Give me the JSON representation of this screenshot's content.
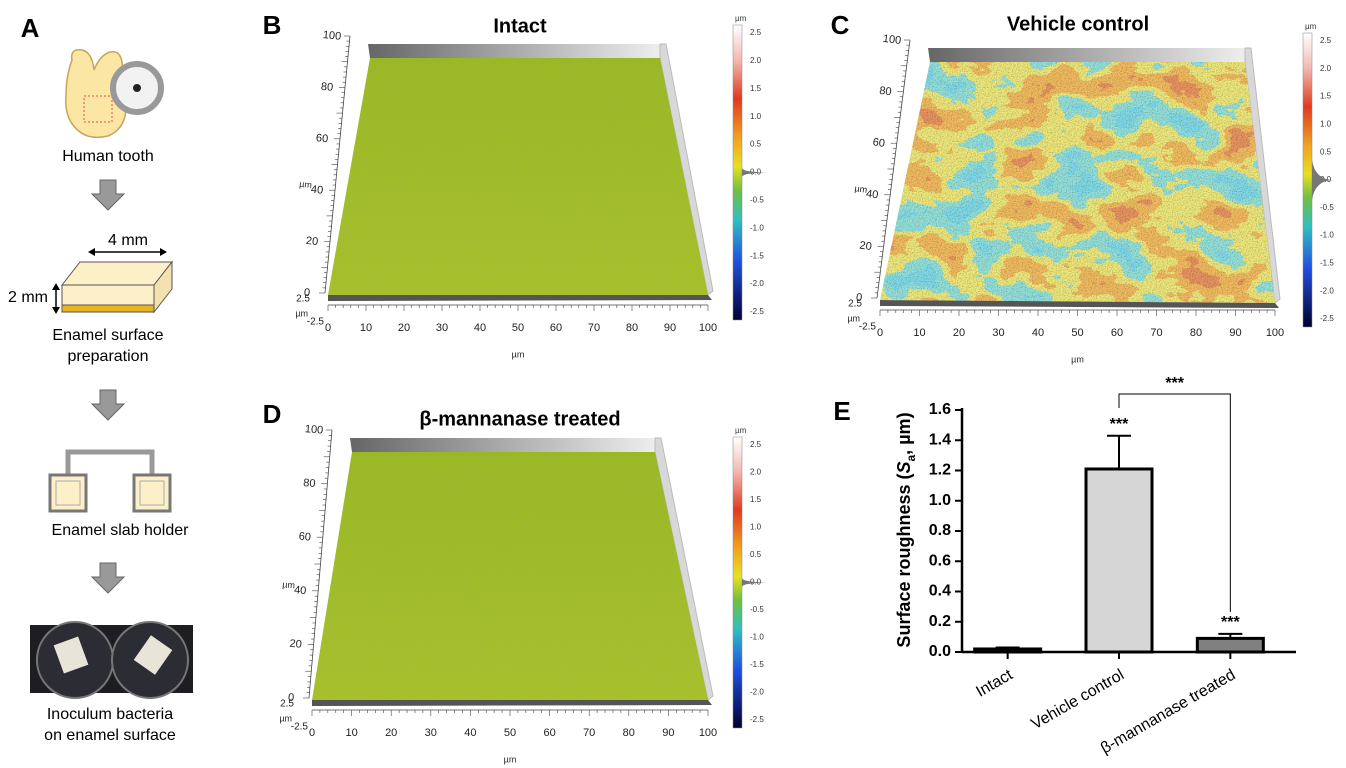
{
  "panel_a": {
    "label": "A",
    "steps": [
      [
        "Human tooth"
      ],
      [
        "Enamel surface",
        "preparation"
      ],
      [
        "Enamel slab holder"
      ],
      [
        "Inoculum bacteria",
        "on enamel surface"
      ]
    ],
    "dimensions": [
      "4 mm",
      "2 mm"
    ]
  },
  "surfaces": [
    {
      "label": "B",
      "title": "Intact"
    },
    {
      "label": "C",
      "title": "Vehicle control"
    },
    {
      "label": "D",
      "title": "β-mannanase treated"
    }
  ],
  "surface_axes": {
    "unit": "µm",
    "xticks": [
      "0",
      "10",
      "20",
      "30",
      "40",
      "50",
      "60",
      "70",
      "80",
      "90",
      "100"
    ],
    "yticks": [
      "0",
      "20",
      "40",
      "60",
      "80",
      "100"
    ],
    "zticks": [
      "2.5",
      "-2.5"
    ],
    "colorbar_ticks": [
      "2.5",
      "2.0",
      "1.5",
      "1.0",
      "0.5",
      "0.0",
      "-0.5",
      "-1.0",
      "-1.5",
      "-2.0",
      "-2.5"
    ]
  },
  "chart_data": {
    "type": "bar",
    "label": "E",
    "ylabel_parts": [
      "Surface roughness (",
      "S",
      "a",
      ", µm)"
    ],
    "categories": [
      "Intact",
      "Vehicle control",
      "β-mannanase treated"
    ],
    "values": [
      0.02,
      1.21,
      0.09
    ],
    "errors": [
      0.01,
      0.22,
      0.03
    ],
    "colors": [
      "#d6d6d6",
      "#d6d6d6",
      "#808080"
    ],
    "edgecolor": "#000000",
    "ylim": [
      0,
      1.6
    ],
    "yticks": [
      {
        "value": 0,
        "label": "0.0"
      },
      {
        "value": 0.2,
        "label": "0.2"
      },
      {
        "value": 0.4,
        "label": "0.4"
      },
      {
        "value": 0.6,
        "label": "0.6"
      },
      {
        "value": 0.8,
        "label": "0.8"
      },
      {
        "value": 1.0,
        "label": "1.0"
      },
      {
        "value": 1.2,
        "label": "1.2"
      },
      {
        "value": 1.4,
        "label": "1.4"
      },
      {
        "value": 1.6,
        "label": "1.6"
      }
    ],
    "annotations": [
      "***",
      "***",
      "***"
    ]
  }
}
